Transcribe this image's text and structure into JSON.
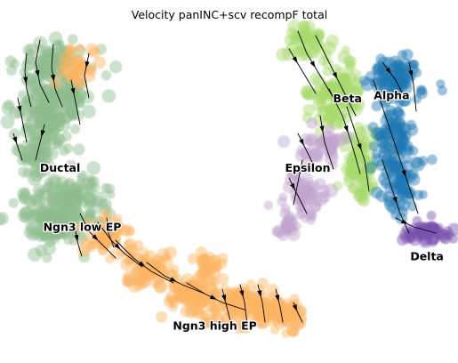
{
  "chart_data": {
    "type": "scatter",
    "title": "Velocity panINC+scv recompF total",
    "xlabel": "",
    "ylabel": "",
    "frame": "none",
    "grid": false,
    "legend": "on data",
    "overlay": "velocity stream lines with arrowheads",
    "clusters": [
      {
        "name": "Ductal",
        "color": "#8fbc8f",
        "label_pos": [
          0.12,
          0.56
        ]
      },
      {
        "name": "Ngn3 low EP",
        "color": "#8fbc8f",
        "label_pos": [
          0.17,
          0.38
        ]
      },
      {
        "name": "Ngn3 high EP",
        "color": "#fdb462",
        "label_pos": [
          0.47,
          0.08
        ]
      },
      {
        "name": "Beta",
        "color": "#a6d96a",
        "label_pos": [
          0.77,
          0.77
        ]
      },
      {
        "name": "Alpha",
        "color": "#1f78b4",
        "label_pos": [
          0.87,
          0.78
        ]
      },
      {
        "name": "Epsilon",
        "color": "#c2a5cf",
        "label_pos": [
          0.68,
          0.56
        ]
      },
      {
        "name": "Delta",
        "color": "#7b4fb0",
        "label_pos": [
          0.95,
          0.29
        ]
      }
    ],
    "xlim": [
      0,
      1
    ],
    "ylim": [
      0,
      1
    ]
  }
}
